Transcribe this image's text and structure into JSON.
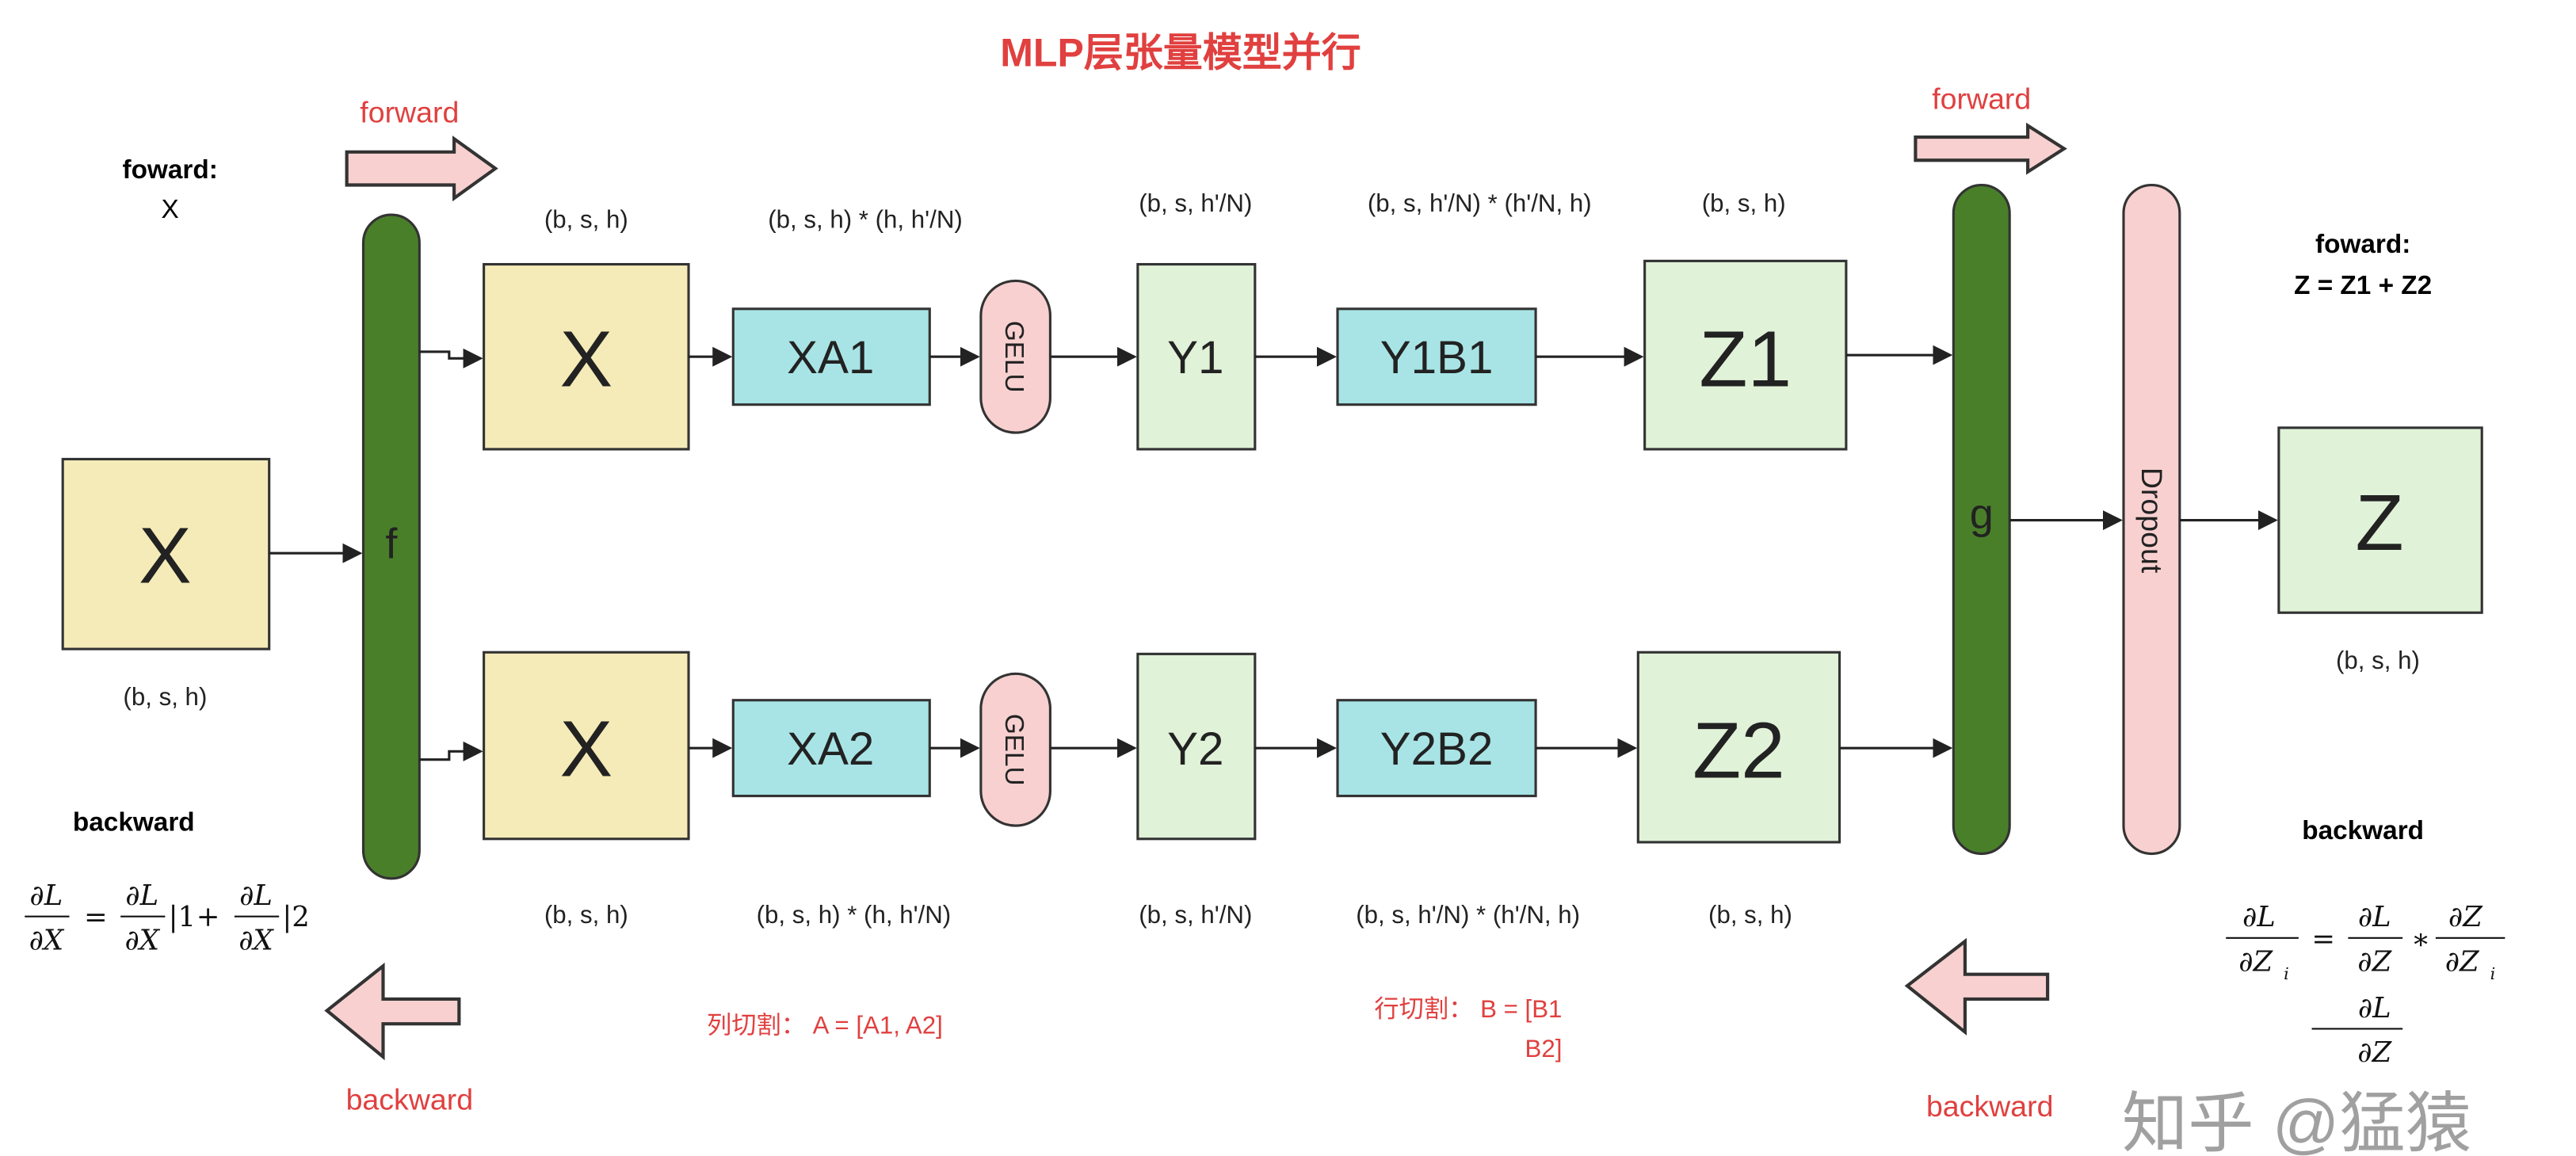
{
  "title": "MLP层张量模型并行",
  "colors": {
    "accent_red": "#e0403f",
    "bar_green": "#4a7f2a",
    "input_yellow": "#f5ebb8",
    "matmul_cyan": "#a8e4e6",
    "output_green": "#e0f2d8",
    "op_pink": "#f8d0d0"
  },
  "left": {
    "forward_label": "forward",
    "forward_note": "foward:",
    "forward_var": "X",
    "input_box": "X",
    "input_shape": "(b, s, h)",
    "f_label": "f",
    "backward_note": "backward",
    "backward_label": "backward",
    "formula": {
      "lhs_num": "∂L",
      "lhs_den": "∂X",
      "eq": "=",
      "t1_num": "∂L",
      "t1_den": "∂X",
      "t1_suffix": "|1",
      "plus": "+",
      "t2_num": "∂L",
      "t2_den": "∂X",
      "t2_suffix": "|2"
    }
  },
  "rows": [
    {
      "x": "X",
      "xa": "XA1",
      "gelu": "GELU",
      "y": "Y1",
      "yb": "Y1B1",
      "z": "Z1",
      "shapes": [
        "(b, s, h)",
        "(b, s, h) * (h, h'/N)",
        "(b, s,  h'/N)",
        "(b, s, h'/N) * (h'/N, h)",
        "(b, s, h)"
      ]
    },
    {
      "x": "X",
      "xa": "XA2",
      "gelu": "GELU",
      "y": "Y2",
      "yb": "Y2B2",
      "z": "Z2",
      "shapes": [
        "(b, s, h)",
        "(b, s, h) * (h, h'/N)",
        "(b, s,  h'/N)",
        "(b, s, h'/N) * (h'/N, h)",
        "(b, s, h)"
      ]
    }
  ],
  "splits": {
    "column": "列切割：  A = [A1, A2]",
    "row_line1": "行切割：  B = [B1",
    "row_line2": "B2]"
  },
  "right": {
    "forward_label": "forward",
    "g_label": "g",
    "dropout_label": "Dropout",
    "output_box": "Z",
    "output_shape": "(b, s, h)",
    "forward_note": "foward:",
    "forward_eq": "Z = Z1 + Z2",
    "backward_note": "backward",
    "backward_label": "backward",
    "formula": {
      "lhs_num": "∂L",
      "lhs_den": "∂Z",
      "lhs_sub": "i",
      "eq": "=",
      "t1_num": "∂L",
      "t1_den": "∂Z",
      "times": "*",
      "t2_num": "∂Z",
      "t2_den": "∂Z",
      "t2_sub": "i",
      "extra_num": "∂L",
      "extra_den": "∂Z"
    }
  },
  "watermark": "知乎 @猛猿"
}
